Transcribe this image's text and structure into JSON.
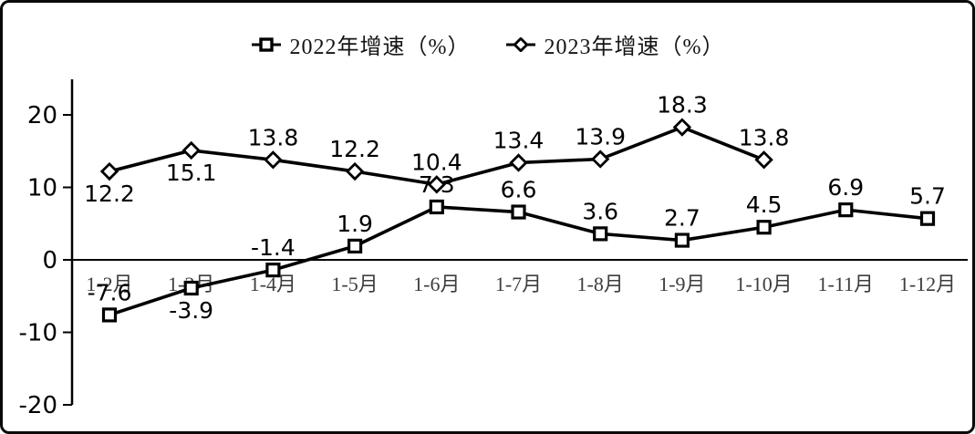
{
  "legend": [
    {
      "label": "2022年增速（%）",
      "marker": "square"
    },
    {
      "label": "2023年增速（%）",
      "marker": "diamond"
    }
  ],
  "chart_data": {
    "type": "line",
    "title": "",
    "xlabel": "",
    "ylabel": "",
    "categories": [
      "1-2月",
      "1-3月",
      "1-4月",
      "1-5月",
      "1-6月",
      "1-7月",
      "1-8月",
      "1-9月",
      "1-10月",
      "1-11月",
      "1-12月"
    ],
    "series": [
      {
        "name": "2022年增速（%）",
        "marker": "square",
        "values": [
          -7.6,
          -3.9,
          -1.4,
          1.9,
          7.3,
          6.6,
          3.6,
          2.7,
          4.5,
          6.9,
          5.7
        ],
        "label_pos": [
          "above",
          "below",
          "above",
          "above",
          "above",
          "above",
          "above",
          "above",
          "above",
          "above",
          "above"
        ]
      },
      {
        "name": "2023年增速（%）",
        "marker": "diamond",
        "values": [
          12.2,
          15.1,
          13.8,
          12.2,
          10.4,
          13.4,
          13.9,
          18.3,
          13.8,
          null,
          null
        ],
        "label_pos": [
          "below",
          "below",
          "above",
          "above",
          "above",
          "above",
          "above",
          "above",
          "above",
          "above",
          "above"
        ]
      }
    ],
    "yticks": [
      20,
      10,
      0,
      -10,
      -20
    ],
    "ylim": [
      -20,
      25
    ],
    "grid": false,
    "legend_position": "top"
  },
  "colors": {
    "line": "#000000",
    "marker_fill": "#ffffff",
    "text": "#000000",
    "axis": "#000000",
    "category_label": "#3d3d3d",
    "background": "#ffffff",
    "border": "#0a0a0a"
  }
}
